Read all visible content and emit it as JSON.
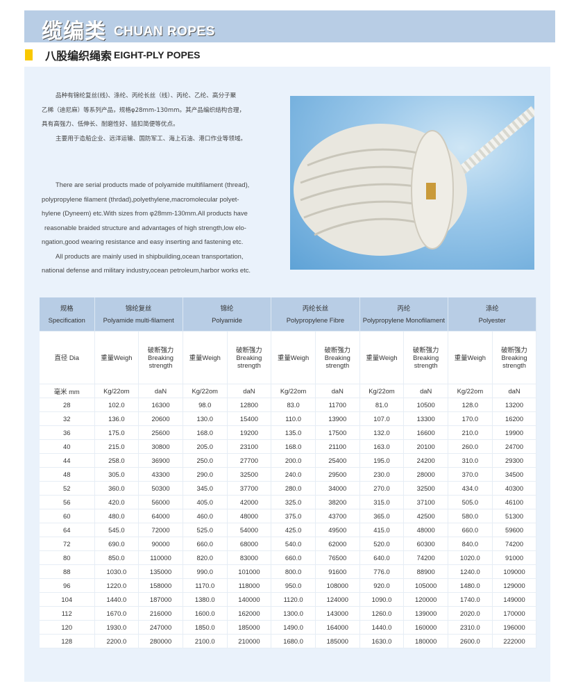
{
  "header": {
    "title_cn": "缆编类",
    "title_en": "CHUAN ROPES",
    "band_color": "#b8cde5"
  },
  "section": {
    "title_cn": "八股编织绳索",
    "title_en": "EIGHT-PLY POPES",
    "marker_color": "#f9c800"
  },
  "description_cn": [
    "品种有锦纶复丝(线)、涤纶、丙纶长丝（线）、丙纶、乙纶、高分子聚",
    "乙稀（迪尼麻）等系列产品，规格φ28mm-130mm。其产品编织结构合理，",
    "具有高强力、低伸长、耐磨性好、插扣简便等优点。",
    "主要用于造船企业、远洋运输、国防军工、海上石油、港口作业等领域。"
  ],
  "description_en": [
    "There are serial products made of polyamide multifilament (thread),",
    "polypropylene filament (thrdad),polyethylene,macromolecular polyet-",
    "hylene (Dyneem) etc.With sizes from φ28mm-130mm.All products have",
    "reasonable braided structure and advantages of high strength,low elo-",
    "ngation,good wearing resistance and easy  inserting and fastening etc.",
    "All products are mainly used in shipbuilding,ocean transportation,",
    "national defense and military industry,ocean petroleum,harbor works etc."
  ],
  "photo": {
    "icon": "rope-coil-photo"
  },
  "table": {
    "spec": {
      "cn": "规格",
      "en": "Specification"
    },
    "materials": [
      {
        "cn": "锦纶复丝",
        "en": "Polyamide multi-filament"
      },
      {
        "cn": "锦纶",
        "en": "Polyamide"
      },
      {
        "cn": "丙纶长丝",
        "en": "Polypropylene Fibre"
      },
      {
        "cn": "丙纶",
        "en": "Polypropylene Monofilament"
      },
      {
        "cn": "涤纶",
        "en": "Polyester"
      }
    ],
    "dia_label": "直径 Dia",
    "weight_label": "重量Weigh",
    "strength_label": {
      "cn": "破断强力",
      "en1": "Breaking",
      "en2": "strength"
    },
    "units": {
      "dia": "毫米 mm",
      "weight": "Kg/22om",
      "strength": "daN"
    },
    "rows": [
      [
        "28",
        "102.0",
        "16300",
        "98.0",
        "12800",
        "83.0",
        "11700",
        "81.0",
        "10500",
        "128.0",
        "13200"
      ],
      [
        "32",
        "136.0",
        "20600",
        "130.0",
        "15400",
        "110.0",
        "13900",
        "107.0",
        "13300",
        "170.0",
        "16200"
      ],
      [
        "36",
        "175.0",
        "25600",
        "168.0",
        "19200",
        "135.0",
        "17500",
        "132.0",
        "16600",
        "210.0",
        "19900"
      ],
      [
        "40",
        "215.0",
        "30800",
        "205.0",
        "23100",
        "168.0",
        "21100",
        "163.0",
        "20100",
        "260.0",
        "24700"
      ],
      [
        "44",
        "258.0",
        "36900",
        "250.0",
        "27700",
        "200.0",
        "25400",
        "195.0",
        "24200",
        "310.0",
        "29300"
      ],
      [
        "48",
        "305.0",
        "43300",
        "290.0",
        "32500",
        "240.0",
        "29500",
        "230.0",
        "28000",
        "370.0",
        "34500"
      ],
      [
        "52",
        "360.0",
        "50300",
        "345.0",
        "37700",
        "280.0",
        "34000",
        "270.0",
        "32500",
        "434.0",
        "40300"
      ],
      [
        "56",
        "420.0",
        "56000",
        "405.0",
        "42000",
        "325.0",
        "38200",
        "315.0",
        "37100",
        "505.0",
        "46100"
      ],
      [
        "60",
        "480.0",
        "64000",
        "460.0",
        "48000",
        "375.0",
        "43700",
        "365.0",
        "42500",
        "580.0",
        "51300"
      ],
      [
        "64",
        "545.0",
        "72000",
        "525.0",
        "54000",
        "425.0",
        "49500",
        "415.0",
        "48000",
        "660.0",
        "59600"
      ],
      [
        "72",
        "690.0",
        "90000",
        "660.0",
        "68000",
        "540.0",
        "62000",
        "520.0",
        "60300",
        "840.0",
        "74200"
      ],
      [
        "80",
        "850.0",
        "110000",
        "820.0",
        "83000",
        "660.0",
        "76500",
        "640.0",
        "74200",
        "1020.0",
        "91000"
      ],
      [
        "88",
        "1030.0",
        "135000",
        "990.0",
        "101000",
        "800.0",
        "91600",
        "776.0",
        "88900",
        "1240.0",
        "109000"
      ],
      [
        "96",
        "1220.0",
        "158000",
        "1170.0",
        "118000",
        "950.0",
        "108000",
        "920.0",
        "105000",
        "1480.0",
        "129000"
      ],
      [
        "104",
        "1440.0",
        "187000",
        "1380.0",
        "140000",
        "1120.0",
        "124000",
        "1090.0",
        "120000",
        "1740.0",
        "149000"
      ],
      [
        "112",
        "1670.0",
        "216000",
        "1600.0",
        "162000",
        "1300.0",
        "143000",
        "1260.0",
        "139000",
        "2020.0",
        "170000"
      ],
      [
        "120",
        "1930.0",
        "247000",
        "1850.0",
        "185000",
        "1490.0",
        "164000",
        "1440.0",
        "160000",
        "2310.0",
        "196000"
      ],
      [
        "128",
        "2200.0",
        "280000",
        "2100.0",
        "210000",
        "1680.0",
        "185000",
        "1630.0",
        "180000",
        "2600.0",
        "222000"
      ]
    ]
  }
}
